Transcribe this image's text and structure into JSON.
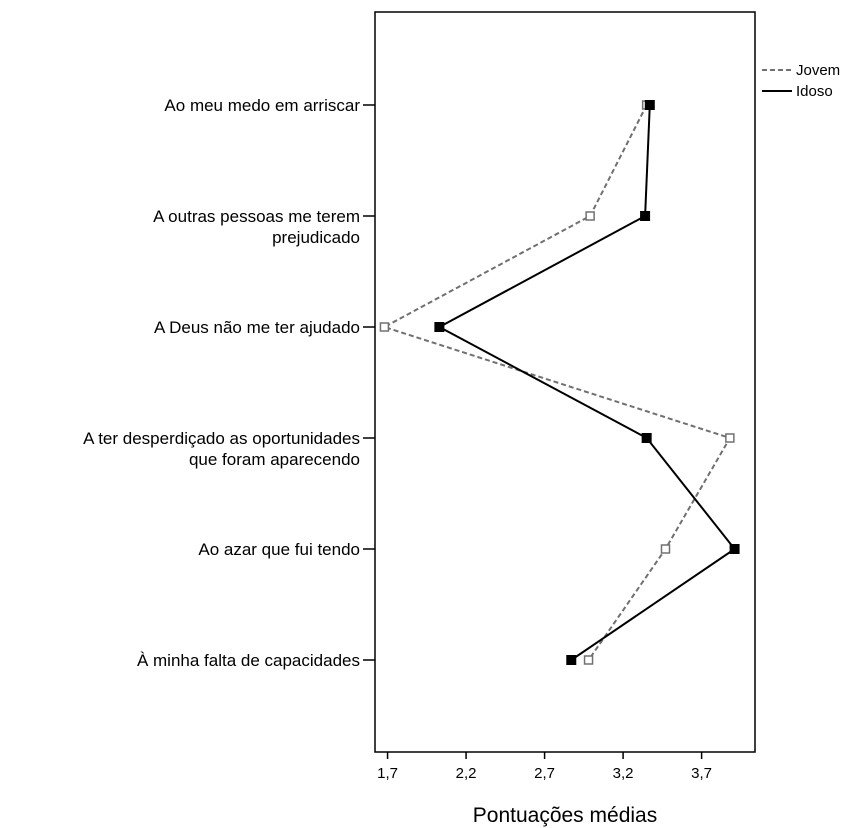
{
  "chart_data": {
    "type": "line",
    "orientation": "horizontal",
    "xlabel": "Pontuações médias",
    "xlim": [
      1.62,
      4.04
    ],
    "xticks": [
      1.7,
      2.2,
      2.7,
      3.2,
      3.7
    ],
    "xtick_labels": [
      "1,7",
      "2,2",
      "2,7",
      "3,2",
      "3,7"
    ],
    "grid": false,
    "legend_position": "top-right",
    "categories": [
      [
        "Ao meu medo em arriscar"
      ],
      [
        "A outras pessoas me terem",
        "prejudicado"
      ],
      [
        "A Deus não me ter ajudado"
      ],
      [
        "A ter desperdiçado as oportunidades",
        "que foram aparecendo"
      ],
      [
        "Ao azar que fui tendo"
      ],
      [
        "À minha falta de capacidades"
      ]
    ],
    "series": [
      {
        "name": "Jovem",
        "color": "#707070",
        "line_style": "dashed",
        "marker": "hollow-square",
        "values": [
          3.35,
          2.99,
          1.68,
          3.88,
          3.47,
          2.98
        ]
      },
      {
        "name": "Idoso",
        "color": "#000000",
        "line_style": "solid",
        "marker": "filled-square",
        "values": [
          3.37,
          3.34,
          2.03,
          3.35,
          3.91,
          2.87
        ]
      }
    ]
  }
}
